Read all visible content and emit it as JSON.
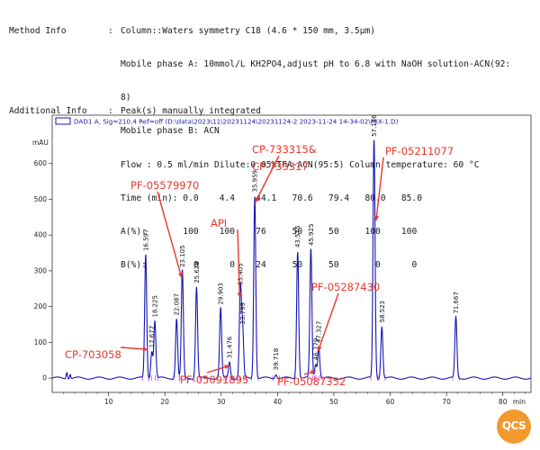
{
  "method_info": {
    "label": "Method Info",
    "colon": ":",
    "lines": [
      "Column::Waters symmetry C18 (4.6 * 150 mm, 3.5µm)",
      "Mobile phase A: 10mmol/L KH2PO4,adjust pH to 6.8 with NaOH solution-ACN(92:",
      "8)",
      "Mobile phase B: ACN",
      "Flow : 0.5 ml/min Dilute:0.05%TFA-ACN(95:5) Column temperature: 60 °C",
      "Time (min): 0.0    4.4    44.1   70.6   79.4   80.0   85.0",
      "A(%):       100    100    76     50     50     100    100",
      "B(%):         0      0    24     50     50       0      0"
    ]
  },
  "additional_info": {
    "label": "Additional Info",
    "colon": ":",
    "text": "Peak(s) manually integrated"
  },
  "chart_data": {
    "type": "line",
    "legend": "DAD1 A, Sig=210,4 Ref=off (D:\\data\\2023\\11\\20231124\\20231124-2 2023-11-24 14-34-02\\MIX-1.D)",
    "yunit": "mAU",
    "xunit": "min",
    "xlim": [
      0,
      85
    ],
    "ylim": [
      -40,
      700
    ],
    "xticks": [
      10,
      20,
      30,
      40,
      50,
      60,
      70,
      80
    ],
    "yticks": [
      0,
      100,
      200,
      300,
      400,
      500,
      600
    ],
    "peaks": [
      {
        "rt": 16.597,
        "height": 345,
        "label": "16.597"
      },
      {
        "rt": 17.677,
        "height": 75,
        "label": "17.677"
      },
      {
        "rt": 18.225,
        "height": 160,
        "label": "18.225"
      },
      {
        "rt": 22.087,
        "height": 165,
        "label": "22.087"
      },
      {
        "rt": 23.105,
        "height": 300,
        "label": "23.105"
      },
      {
        "rt": 25.628,
        "height": 255,
        "label": "25.628"
      },
      {
        "rt": 29.903,
        "height": 195,
        "label": "29.903"
      },
      {
        "rt": 31.476,
        "height": 45,
        "label": "31.476"
      },
      {
        "rt": 33.405,
        "height": 250,
        "label": "33.405"
      },
      {
        "rt": 33.799,
        "height": 140,
        "label": "33.799"
      },
      {
        "rt": 35.959,
        "height": 510,
        "label": "35.959"
      },
      {
        "rt": 39.718,
        "height": 12,
        "label": "39.718"
      },
      {
        "rt": 43.575,
        "height": 355,
        "label": "43.575"
      },
      {
        "rt": 45.925,
        "height": 360,
        "label": "45.925"
      },
      {
        "rt": 46.779,
        "height": 40,
        "label": "46.779"
      },
      {
        "rt": 47.327,
        "height": 88,
        "label": "47.327"
      },
      {
        "rt": 57.136,
        "height": 665,
        "label": "57.136"
      },
      {
        "rt": 58.523,
        "height": 145,
        "label": "58.523"
      },
      {
        "rt": 71.667,
        "height": 170,
        "label": "71.667"
      }
    ],
    "annotations": [
      {
        "text": "CP-703058",
        "target_rt": 17.0,
        "target_y": 80
      },
      {
        "text": "PF-05579970",
        "target_rt": 23.0,
        "target_y": 280
      },
      {
        "text": "API",
        "target_rt": 33.3,
        "target_y": 225
      },
      {
        "text": "CP-733315&",
        "target_rt": 36.0,
        "target_y": 490
      },
      {
        "text": "CP-733317",
        "target_rt": null,
        "target_y": null
      },
      {
        "text": "PF-05211077",
        "target_rt": 57.5,
        "target_y": 440
      },
      {
        "text": "PF-05287430",
        "target_rt": 47.2,
        "target_y": 75
      },
      {
        "text": "PF-05091895",
        "target_rt": 31.5,
        "target_y": 35
      },
      {
        "text": "PF-05087352",
        "target_rt": 46.8,
        "target_y": 20
      }
    ],
    "colors": {
      "trace": "#1414b4",
      "baseline_marks": "#e04be0",
      "annotation": "#e8372c",
      "axis": "#222222"
    }
  },
  "logo": {
    "text": "QCS",
    "color": "#f39a2e"
  }
}
